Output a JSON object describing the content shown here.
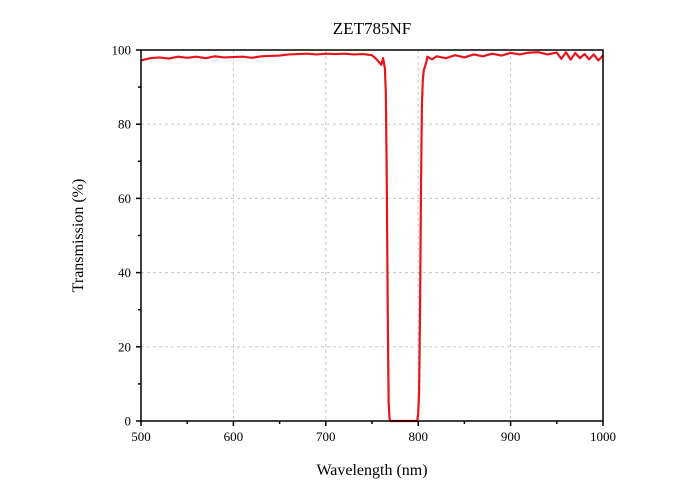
{
  "chart_data": {
    "type": "line",
    "title": "ZET785NF",
    "xlabel": "Wavelength (nm)",
    "ylabel": "Transmission (%)",
    "xlim": [
      500,
      1000
    ],
    "ylim": [
      0,
      100
    ],
    "xticks": [
      500,
      600,
      700,
      800,
      900,
      1000
    ],
    "yticks": [
      0,
      20,
      40,
      60,
      80,
      100
    ],
    "grid": true,
    "series": [
      {
        "color": "#e8141c",
        "x": [
          500,
          505,
          510,
          520,
          530,
          540,
          550,
          560,
          570,
          580,
          590,
          600,
          610,
          620,
          630,
          640,
          650,
          660,
          670,
          680,
          690,
          700,
          710,
          720,
          730,
          740,
          750,
          755,
          760,
          762,
          764,
          765,
          766,
          767,
          768,
          769,
          770,
          780,
          790,
          799,
          800,
          801,
          802,
          803,
          804,
          805,
          806,
          808,
          810,
          815,
          820,
          830,
          840,
          850,
          860,
          870,
          880,
          890,
          900,
          910,
          920,
          930,
          940,
          950,
          955,
          960,
          965,
          970,
          975,
          980,
          985,
          990,
          995,
          1000
        ],
        "y": [
          97.2,
          97.5,
          97.8,
          98.0,
          97.7,
          98.2,
          97.9,
          98.2,
          97.8,
          98.3,
          98.0,
          98.1,
          98.2,
          97.9,
          98.3,
          98.4,
          98.5,
          98.8,
          98.9,
          99.0,
          98.8,
          99.0,
          98.9,
          99.0,
          98.8,
          98.9,
          98.6,
          97.5,
          96.0,
          97.8,
          95.0,
          88.0,
          65.0,
          30.0,
          5.0,
          0.5,
          0.0,
          0.0,
          0.0,
          0.0,
          2.0,
          8.0,
          30.0,
          62.0,
          85.0,
          92.0,
          94.5,
          96.0,
          98.2,
          97.5,
          98.3,
          97.8,
          98.6,
          98.0,
          98.8,
          98.3,
          99.0,
          98.5,
          99.2,
          98.8,
          99.3,
          99.4,
          98.8,
          99.3,
          97.6,
          99.4,
          97.4,
          99.2,
          97.8,
          98.9,
          97.5,
          98.8,
          97.2,
          98.5
        ]
      }
    ]
  }
}
